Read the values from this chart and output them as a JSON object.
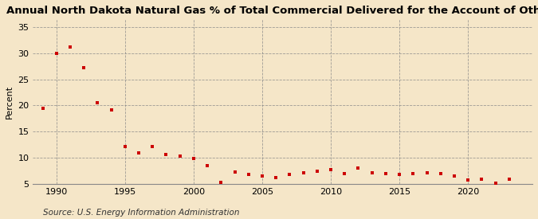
{
  "title": "Annual North Dakota Natural Gas % of Total Commercial Delivered for the Account of Others",
  "ylabel": "Percent",
  "source": "Source: U.S. Energy Information Administration",
  "background_color": "#f5e6c8",
  "marker_color": "#cc0000",
  "xlim": [
    1988.3,
    2024.7
  ],
  "ylim": [
    5,
    36.5
  ],
  "yticks": [
    5,
    10,
    15,
    20,
    25,
    30,
    35
  ],
  "xticks": [
    1990,
    1995,
    2000,
    2005,
    2010,
    2015,
    2020
  ],
  "years": [
    1989,
    1990,
    1991,
    1992,
    1993,
    1994,
    1995,
    1996,
    1997,
    1998,
    1999,
    2000,
    2001,
    2002,
    2003,
    2004,
    2005,
    2006,
    2007,
    2008,
    2009,
    2010,
    2011,
    2012,
    2013,
    2014,
    2015,
    2016,
    2017,
    2018,
    2019,
    2020,
    2021,
    2022,
    2023
  ],
  "values": [
    19.5,
    30.0,
    31.2,
    27.2,
    20.5,
    19.2,
    12.1,
    11.0,
    12.1,
    10.6,
    10.4,
    9.9,
    8.5,
    5.3,
    7.3,
    6.8,
    6.5,
    6.3,
    6.8,
    7.2,
    7.5,
    7.7,
    7.0,
    8.0,
    7.2,
    7.0,
    6.8,
    7.0,
    7.2,
    7.0,
    6.5,
    5.8,
    6.0,
    5.2,
    6.0
  ],
  "title_fontsize": 9.5,
  "ylabel_fontsize": 8,
  "tick_fontsize": 8,
  "source_fontsize": 7.5
}
